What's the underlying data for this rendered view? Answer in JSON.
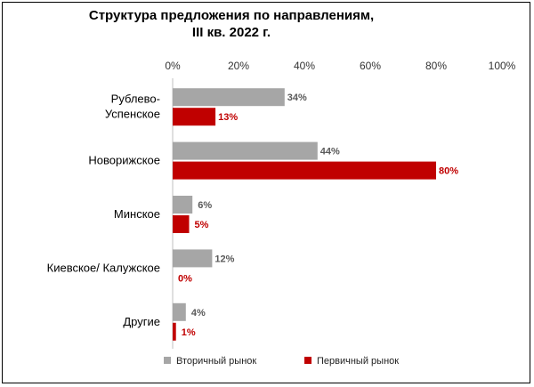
{
  "chart_data": {
    "type": "bar",
    "orientation": "horizontal",
    "title": [
      "Структура предложения по направлениям,",
      "III кв. 2022 г."
    ],
    "categories": [
      [
        "Рублево-",
        "Успенское"
      ],
      [
        "Новорижское"
      ],
      [
        "Минское"
      ],
      [
        "Киевское/ Калужское"
      ],
      [
        "Другие"
      ]
    ],
    "series": [
      {
        "name": "Вторичный рынок",
        "color": "#A6A6A6",
        "label_color": "#595959",
        "values": [
          34,
          44,
          6,
          12,
          4
        ]
      },
      {
        "name": "Первичный рынок",
        "color": "#C00000",
        "label_color": "#C00000",
        "values": [
          13,
          80,
          5,
          0,
          1
        ]
      }
    ],
    "value_suffix": "%",
    "xlim": [
      0,
      100
    ],
    "xticks": [
      "0%",
      "20%",
      "40%",
      "60%",
      "80%",
      "100%"
    ],
    "x_axis_position": "top",
    "grid": false,
    "legend_position": "bottom"
  }
}
